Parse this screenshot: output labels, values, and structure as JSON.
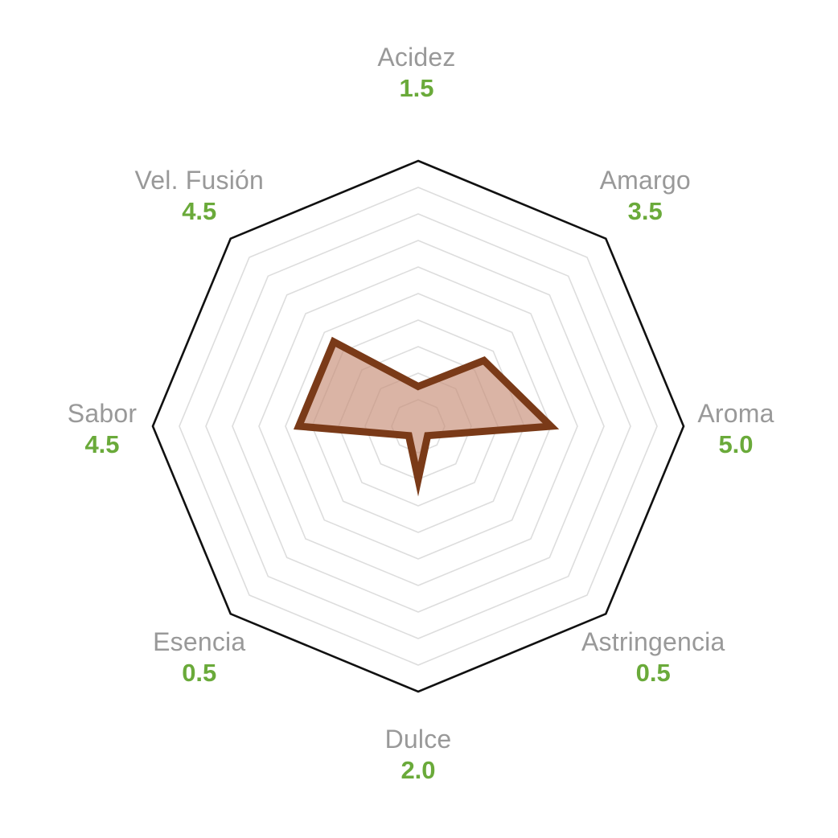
{
  "chart_data": {
    "type": "radar",
    "title": "",
    "axes": [
      "Acidez",
      "Amargo",
      "Aroma",
      "Astringencia",
      "Dulce",
      "Esencia",
      "Sabor",
      "Vel. Fusión"
    ],
    "value_labels": [
      "1.5",
      "3.5",
      "5.0",
      "0.5",
      "2.0",
      "0.5",
      "4.5",
      "4.5"
    ],
    "series": [
      {
        "values": [
          1.5,
          3.5,
          5.0,
          0.5,
          2.0,
          0.5,
          4.5,
          4.5
        ]
      }
    ],
    "range": [
      0,
      10
    ],
    "grid_rings": 10,
    "grid": true,
    "legend": "none"
  },
  "colors": {
    "series_stroke": "#7a3a18",
    "series_fill": "#c9917a",
    "outer_ring": "#111111",
    "grid": "#dddddd",
    "label": "#999999",
    "value": "#6aaa3a"
  }
}
